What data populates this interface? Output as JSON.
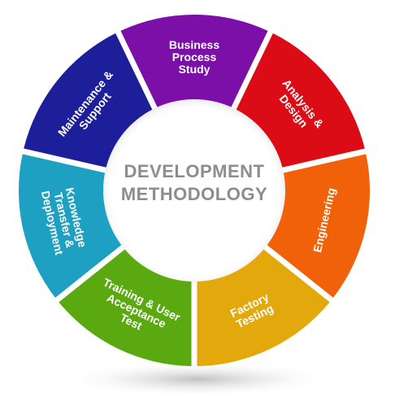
{
  "center": {
    "line1": "DEVELOPMENT",
    "line2": "METHODOLOGY"
  },
  "segments": [
    {
      "id": "business-process-study",
      "lines": [
        "Business",
        "Process",
        "Study"
      ],
      "color": "#7b0fa8",
      "icon": ""
    },
    {
      "id": "analysis-design",
      "lines": [
        "Analysis &",
        "Design"
      ],
      "color": "#dc0c16",
      "icon": ""
    },
    {
      "id": "engineering",
      "lines": [
        "Engineering"
      ],
      "color": "#f06109",
      "icon": ""
    },
    {
      "id": "factory-testing",
      "lines": [
        "Factory",
        "Testing"
      ],
      "color": "#e3a80b",
      "icon": ""
    },
    {
      "id": "training-user-acceptance-test",
      "lines": [
        "Training & User",
        "Acceptance",
        "Test"
      ],
      "color": "#5ba911",
      "icon": ""
    },
    {
      "id": "knowledge-transfer-deployment",
      "lines": [
        "Knowledge",
        "Transfer &",
        "Deployment"
      ],
      "color": "#1ea0c2",
      "icon": ""
    },
    {
      "id": "maintenance-support",
      "lines": [
        "Maintenance &",
        "Support"
      ],
      "color": "#1c1e9a",
      "icon": ""
    }
  ],
  "colors": {
    "center_text": "#8d8d8d",
    "background": "#ffffff",
    "shadow": "#bdbdbd"
  }
}
